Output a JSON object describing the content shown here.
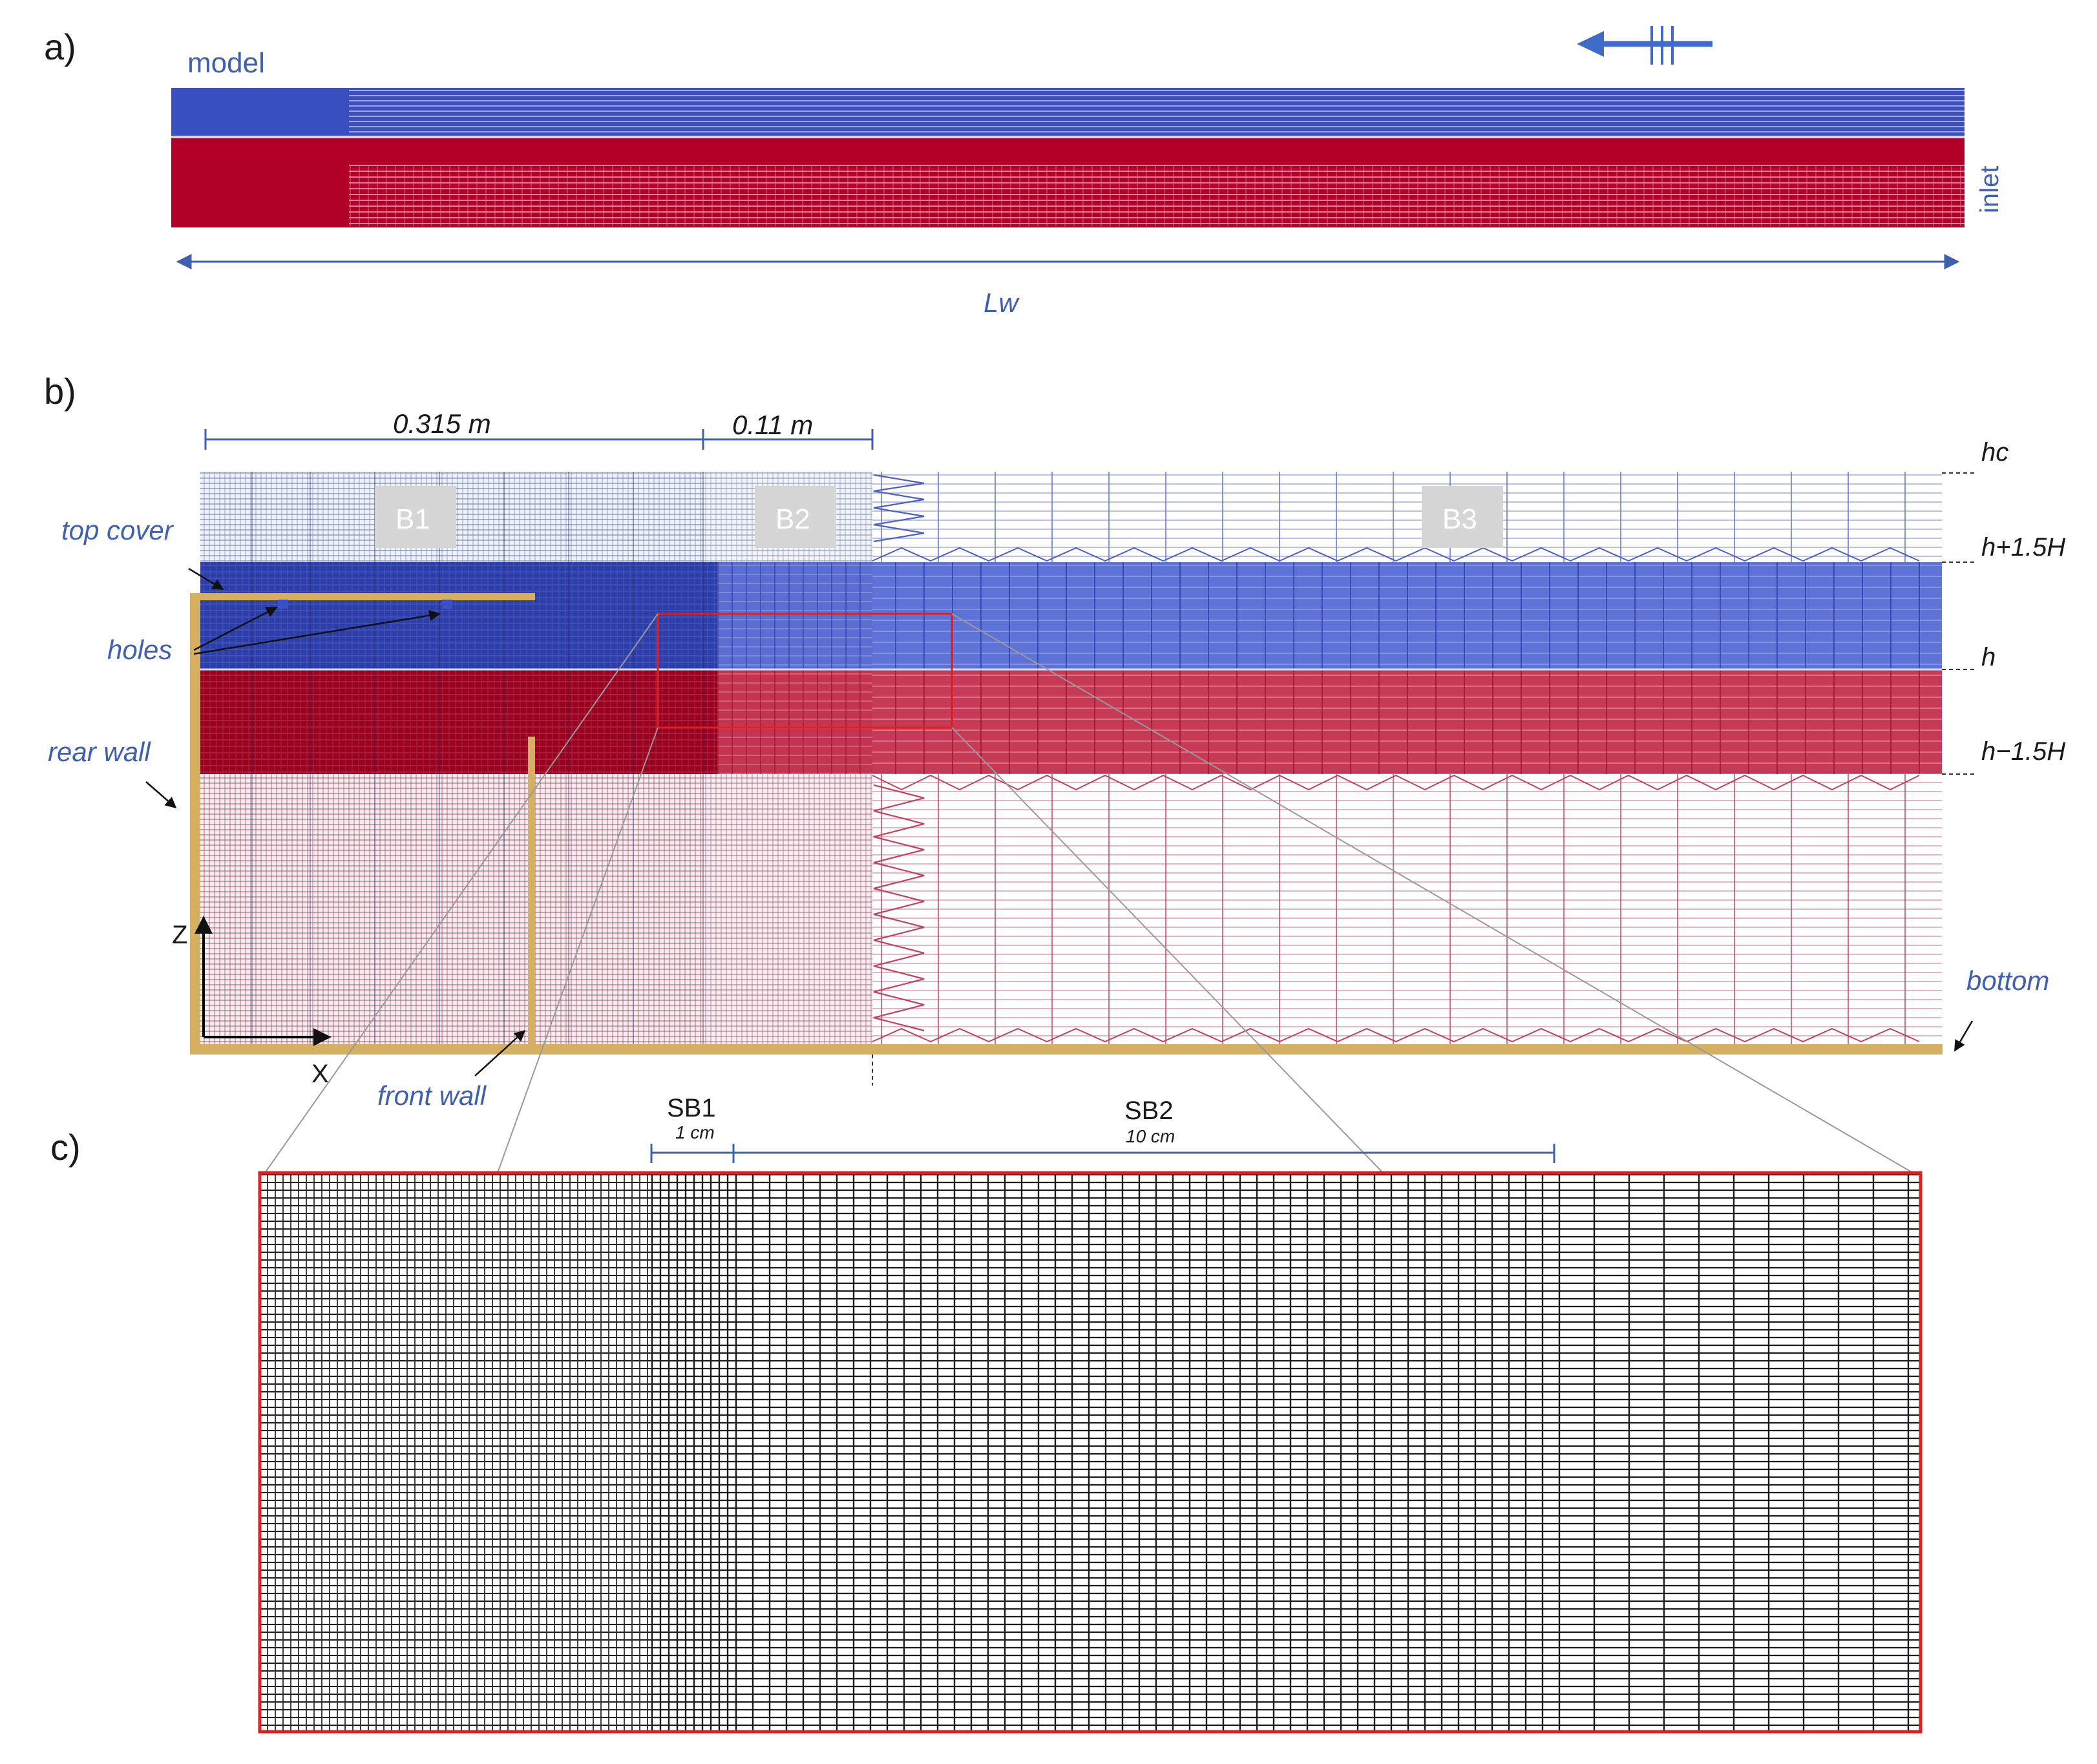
{
  "panels": {
    "a": {
      "label": "a)",
      "model_label": "model",
      "inlet_label": "inlet",
      "length_label": "Lw"
    },
    "b": {
      "label": "b)",
      "dim_b1": "0.315 m",
      "dim_b2": "0.11 m",
      "blocks": [
        "B1",
        "B2",
        "B3"
      ],
      "levels": [
        "hc",
        "h+1.5H",
        "h",
        "h−1.5H"
      ],
      "callouts": {
        "top_cover": "top cover",
        "holes": "holes",
        "rear_wall": "rear wall",
        "front_wall": "front wall",
        "bottom": "bottom"
      },
      "axes": {
        "z": "Z",
        "x": "X"
      }
    },
    "c": {
      "label": "c)",
      "sb1": "SB1",
      "sb1_size": "1 cm",
      "sb2": "SB2",
      "sb2_size": "10 cm"
    }
  },
  "colors": {
    "air": "#3a4fc0",
    "water": "#b2002a",
    "wall": "#d4b060",
    "annotation": "#3f5fb0",
    "zoom_box": "#e02020",
    "mesh": "#111111"
  },
  "icons": {
    "flow_direction": "flow-arrow-icon"
  }
}
